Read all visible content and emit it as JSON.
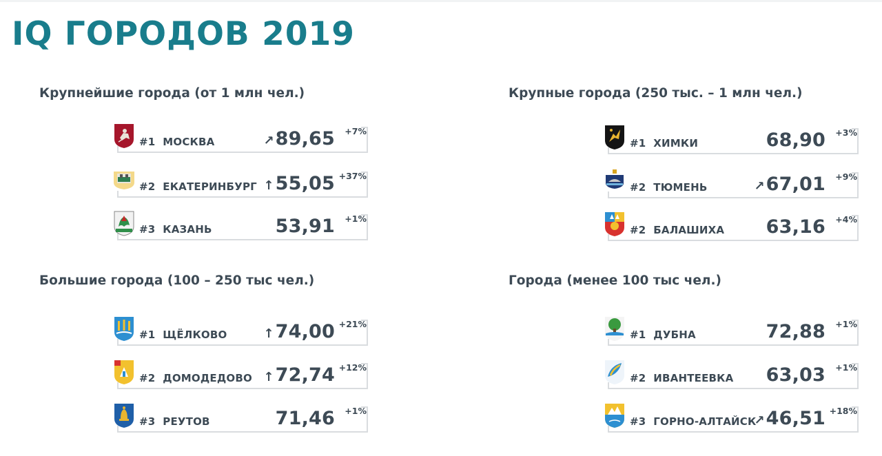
{
  "title": "IQ ГОРОДОВ 2019",
  "sections": [
    {
      "title": "Крупнейшие города (от 1 млн чел.)",
      "rows": [
        {
          "rank": "#1",
          "city": "МОСКВА",
          "arrow": "↗",
          "score": "89,65",
          "delta": "+7%",
          "crest": "moscow-crest-icon"
        },
        {
          "rank": "#2",
          "city": "ЕКАТЕРИНБУРГ",
          "arrow": "↑",
          "score": "55,05",
          "delta": "+37%",
          "crest": "yekaterinburg-crest-icon"
        },
        {
          "rank": "#3",
          "city": "КАЗАНЬ",
          "arrow": "",
          "score": "53,91",
          "delta": "+1%",
          "crest": "kazan-crest-icon"
        }
      ]
    },
    {
      "title": "Крупные города (250 тыс. – 1 млн чел.)",
      "rows": [
        {
          "rank": "#1",
          "city": "ХИМКИ",
          "arrow": "",
          "score": "68,90",
          "delta": "+3%",
          "crest": "khimki-crest-icon"
        },
        {
          "rank": "#2",
          "city": "ТЮМЕНЬ",
          "arrow": "↗",
          "score": "67,01",
          "delta": "+9%",
          "crest": "tyumen-crest-icon"
        },
        {
          "rank": "#2",
          "city": "БАЛАШИХА",
          "arrow": "",
          "score": "63,16",
          "delta": "+4%",
          "crest": "balashikha-crest-icon"
        }
      ]
    },
    {
      "title": "Большие города (100 – 250 тыс чел.)",
      "rows": [
        {
          "rank": "#1",
          "city": "ЩЁЛКОВО",
          "arrow": "↑",
          "score": "74,00",
          "delta": "+21%",
          "crest": "shchyolkovo-crest-icon"
        },
        {
          "rank": "#2",
          "city": "ДОМОДЕДОВО",
          "arrow": "↑",
          "score": "72,74",
          "delta": "+12%",
          "crest": "domodedovo-crest-icon"
        },
        {
          "rank": "#3",
          "city": "РЕУТОВ",
          "arrow": "",
          "score": "71,46",
          "delta": "+1%",
          "crest": "reutov-crest-icon"
        }
      ]
    },
    {
      "title": "Города (менее 100 тыс чел.)",
      "rows": [
        {
          "rank": "#1",
          "city": "ДУБНА",
          "arrow": "",
          "score": "72,88",
          "delta": "+1%",
          "crest": "dubna-crest-icon"
        },
        {
          "rank": "#2",
          "city": "ИВАНТЕЕВКА",
          "arrow": "",
          "score": "63,03",
          "delta": "+1%",
          "crest": "ivanteevka-crest-icon"
        },
        {
          "rank": "#3",
          "city": "ГОРНО-АЛТАЙСК",
          "arrow": "↗",
          "score": "46,51",
          "delta": "+18%",
          "crest": "gorno-altaysk-crest-icon"
        }
      ]
    }
  ]
}
